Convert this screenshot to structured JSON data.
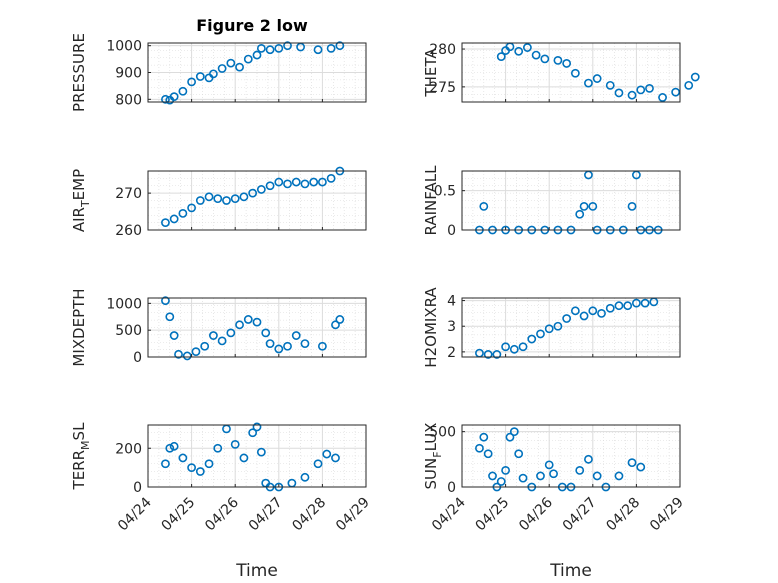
{
  "figure": {
    "title": "Figure 2 low"
  },
  "chart_data": [
    {
      "type": "scatter",
      "title": "Figure 2 low",
      "ylabel": "PRESSURE",
      "ylabel_sub": "",
      "ylim": [
        790,
        1010
      ],
      "yticks": [
        800,
        900,
        1000
      ],
      "yticklabels": [
        "800",
        "900",
        "1000"
      ],
      "xlim": [
        0,
        5
      ],
      "xticks": [
        0,
        1,
        2,
        3,
        4,
        5
      ],
      "xticklabels": [],
      "xlabel": "",
      "grid": true,
      "minor_grid": true,
      "points": [
        [
          0.4,
          800
        ],
        [
          0.5,
          797
        ],
        [
          0.6,
          810
        ],
        [
          0.8,
          830
        ],
        [
          1.0,
          865
        ],
        [
          1.2,
          885
        ],
        [
          1.4,
          880
        ],
        [
          1.5,
          895
        ],
        [
          1.7,
          915
        ],
        [
          1.9,
          935
        ],
        [
          2.1,
          920
        ],
        [
          2.3,
          950
        ],
        [
          2.5,
          965
        ],
        [
          2.6,
          990
        ],
        [
          2.8,
          985
        ],
        [
          3.0,
          990
        ],
        [
          3.2,
          1000
        ],
        [
          3.5,
          995
        ],
        [
          3.9,
          985
        ],
        [
          4.2,
          990
        ],
        [
          4.4,
          1000
        ]
      ]
    },
    {
      "type": "scatter",
      "ylabel": "THETA",
      "ylabel_sub": "",
      "ylim": [
        273,
        280.8
      ],
      "yticks": [
        275,
        280
      ],
      "yticklabels": [
        "275",
        "280"
      ],
      "xlim": [
        0,
        5
      ],
      "xticks": [
        0,
        1,
        2,
        3,
        4,
        5
      ],
      "xticklabels": [],
      "xlabel": "",
      "grid": true,
      "minor_grid": true,
      "points": [
        [
          0.9,
          279
        ],
        [
          1.0,
          279.8
        ],
        [
          1.1,
          280.3
        ],
        [
          1.3,
          279.7
        ],
        [
          1.5,
          280.2
        ],
        [
          1.7,
          279.2
        ],
        [
          1.9,
          278.7
        ],
        [
          2.2,
          278.5
        ],
        [
          2.4,
          278.1
        ],
        [
          2.6,
          276.8
        ],
        [
          2.9,
          275.5
        ],
        [
          3.1,
          276.1
        ],
        [
          3.4,
          275.2
        ],
        [
          3.6,
          274.2
        ],
        [
          3.9,
          273.9
        ],
        [
          4.1,
          274.6
        ],
        [
          4.3,
          274.8
        ],
        [
          4.6,
          273.6
        ],
        [
          4.9,
          274.3
        ],
        [
          5.2,
          275.2
        ],
        [
          5.35,
          276.3
        ]
      ]
    },
    {
      "type": "scatter",
      "ylabel": "AIR",
      "ylabel_sub": "T",
      "ylabel_rest": "EMP",
      "ylim": [
        260,
        276
      ],
      "yticks": [
        260,
        270
      ],
      "yticklabels": [
        "260",
        "270"
      ],
      "xlim": [
        0,
        5
      ],
      "xticks": [
        0,
        1,
        2,
        3,
        4,
        5
      ],
      "xticklabels": [],
      "xlabel": "",
      "grid": true,
      "minor_grid": true,
      "points": [
        [
          0.4,
          262
        ],
        [
          0.6,
          263
        ],
        [
          0.8,
          264.5
        ],
        [
          1.0,
          266
        ],
        [
          1.2,
          268
        ],
        [
          1.4,
          269
        ],
        [
          1.6,
          268.5
        ],
        [
          1.8,
          268
        ],
        [
          2.0,
          268.5
        ],
        [
          2.2,
          269
        ],
        [
          2.4,
          270
        ],
        [
          2.6,
          271
        ],
        [
          2.8,
          272
        ],
        [
          3.0,
          273
        ],
        [
          3.2,
          272.5
        ],
        [
          3.4,
          273
        ],
        [
          3.6,
          272.5
        ],
        [
          3.8,
          273
        ],
        [
          4.0,
          273
        ],
        [
          4.2,
          274
        ],
        [
          4.4,
          276
        ]
      ]
    },
    {
      "type": "scatter",
      "ylabel": "RAINFALL",
      "ylabel_sub": "",
      "ylim": [
        0,
        0.75
      ],
      "yticks": [
        0,
        0.5
      ],
      "yticklabels": [
        "0",
        "0.5"
      ],
      "xlim": [
        0,
        5
      ],
      "xticks": [
        0,
        1,
        2,
        3,
        4,
        5
      ],
      "xticklabels": [],
      "xlabel": "",
      "grid": true,
      "minor_grid": true,
      "points": [
        [
          0.4,
          0
        ],
        [
          0.5,
          0.3
        ],
        [
          0.7,
          0
        ],
        [
          1.0,
          0
        ],
        [
          1.3,
          0
        ],
        [
          1.6,
          0
        ],
        [
          1.9,
          0
        ],
        [
          2.2,
          0
        ],
        [
          2.5,
          0
        ],
        [
          2.7,
          0.2
        ],
        [
          2.8,
          0.3
        ],
        [
          2.9,
          0.7
        ],
        [
          3.0,
          0.3
        ],
        [
          3.1,
          0
        ],
        [
          3.4,
          0
        ],
        [
          3.7,
          0
        ],
        [
          3.9,
          0.3
        ],
        [
          4.0,
          0.7
        ],
        [
          4.1,
          0
        ],
        [
          4.3,
          0
        ],
        [
          4.5,
          0
        ]
      ]
    },
    {
      "type": "scatter",
      "ylabel": "MIXDEPTH",
      "ylabel_sub": "",
      "ylim": [
        0,
        1100
      ],
      "yticks": [
        0,
        500,
        1000
      ],
      "yticklabels": [
        "0",
        "500",
        "1000"
      ],
      "xlim": [
        0,
        5
      ],
      "xticks": [
        0,
        1,
        2,
        3,
        4,
        5
      ],
      "xticklabels": [],
      "xlabel": "",
      "grid": true,
      "minor_grid": true,
      "points": [
        [
          0.4,
          1050
        ],
        [
          0.5,
          750
        ],
        [
          0.6,
          400
        ],
        [
          0.7,
          50
        ],
        [
          0.9,
          20
        ],
        [
          1.1,
          100
        ],
        [
          1.3,
          200
        ],
        [
          1.5,
          400
        ],
        [
          1.7,
          300
        ],
        [
          1.9,
          450
        ],
        [
          2.1,
          600
        ],
        [
          2.3,
          700
        ],
        [
          2.5,
          650
        ],
        [
          2.7,
          450
        ],
        [
          2.8,
          250
        ],
        [
          3.0,
          150
        ],
        [
          3.2,
          200
        ],
        [
          3.4,
          400
        ],
        [
          3.6,
          250
        ],
        [
          4.0,
          200
        ],
        [
          4.3,
          600
        ],
        [
          4.4,
          700
        ]
      ]
    },
    {
      "type": "scatter",
      "ylabel": "H2OMIXRA",
      "ylabel_sub": "",
      "ylim": [
        1.8,
        4.1
      ],
      "yticks": [
        2,
        3,
        4
      ],
      "yticklabels": [
        "2",
        "3",
        "4"
      ],
      "xlim": [
        0,
        5
      ],
      "xticks": [
        0,
        1,
        2,
        3,
        4,
        5
      ],
      "xticklabels": [],
      "xlabel": "",
      "grid": true,
      "minor_grid": true,
      "points": [
        [
          0.4,
          1.95
        ],
        [
          0.6,
          1.9
        ],
        [
          0.8,
          1.9
        ],
        [
          1.0,
          2.2
        ],
        [
          1.2,
          2.1
        ],
        [
          1.4,
          2.2
        ],
        [
          1.6,
          2.5
        ],
        [
          1.8,
          2.7
        ],
        [
          2.0,
          2.9
        ],
        [
          2.2,
          3.0
        ],
        [
          2.4,
          3.3
        ],
        [
          2.6,
          3.6
        ],
        [
          2.8,
          3.4
        ],
        [
          3.0,
          3.6
        ],
        [
          3.2,
          3.5
        ],
        [
          3.4,
          3.7
        ],
        [
          3.6,
          3.8
        ],
        [
          3.8,
          3.8
        ],
        [
          4.0,
          3.9
        ],
        [
          4.2,
          3.9
        ],
        [
          4.4,
          3.95
        ]
      ]
    },
    {
      "type": "scatter",
      "ylabel": "TERR",
      "ylabel_sub": "M",
      "ylabel_rest": "SL",
      "ylim": [
        0,
        320
      ],
      "yticks": [
        0,
        200
      ],
      "yticklabels": [
        "0",
        "200"
      ],
      "xlim": [
        0,
        5
      ],
      "xticks": [
        0,
        1,
        2,
        3,
        4,
        5
      ],
      "xticklabels": [
        "04/24",
        "04/25",
        "04/26",
        "04/27",
        "04/28",
        "04/29"
      ],
      "xlabel": "Time",
      "grid": true,
      "minor_grid": true,
      "points": [
        [
          0.4,
          120
        ],
        [
          0.5,
          200
        ],
        [
          0.6,
          210
        ],
        [
          0.8,
          150
        ],
        [
          1.0,
          100
        ],
        [
          1.2,
          80
        ],
        [
          1.4,
          120
        ],
        [
          1.6,
          200
        ],
        [
          1.8,
          300
        ],
        [
          2.0,
          220
        ],
        [
          2.2,
          150
        ],
        [
          2.4,
          280
        ],
        [
          2.5,
          310
        ],
        [
          2.6,
          180
        ],
        [
          2.7,
          20
        ],
        [
          2.8,
          0
        ],
        [
          3.0,
          0
        ],
        [
          3.3,
          20
        ],
        [
          3.6,
          50
        ],
        [
          3.9,
          120
        ],
        [
          4.1,
          170
        ],
        [
          4.3,
          150
        ]
      ]
    },
    {
      "type": "scatter",
      "ylabel": "SUN",
      "ylabel_sub": "F",
      "ylabel_rest": "LUX",
      "ylim": [
        0,
        560
      ],
      "yticks": [
        0,
        500
      ],
      "yticklabels": [
        "0",
        "500"
      ],
      "xlim": [
        0,
        5
      ],
      "xticks": [
        0,
        1,
        2,
        3,
        4,
        5
      ],
      "xticklabels": [
        "04/24",
        "04/25",
        "04/26",
        "04/27",
        "04/28",
        "04/29"
      ],
      "xlabel": "Time",
      "grid": true,
      "minor_grid": true,
      "points": [
        [
          0.4,
          350
        ],
        [
          0.5,
          450
        ],
        [
          0.6,
          300
        ],
        [
          0.7,
          100
        ],
        [
          0.8,
          0
        ],
        [
          0.9,
          50
        ],
        [
          1.0,
          150
        ],
        [
          1.1,
          450
        ],
        [
          1.2,
          500
        ],
        [
          1.3,
          300
        ],
        [
          1.4,
          80
        ],
        [
          1.6,
          0
        ],
        [
          1.8,
          100
        ],
        [
          2.0,
          200
        ],
        [
          2.1,
          120
        ],
        [
          2.3,
          0
        ],
        [
          2.5,
          0
        ],
        [
          2.7,
          150
        ],
        [
          2.9,
          250
        ],
        [
          3.1,
          100
        ],
        [
          3.3,
          0
        ],
        [
          3.6,
          100
        ],
        [
          3.9,
          220
        ],
        [
          4.1,
          180
        ]
      ]
    }
  ]
}
